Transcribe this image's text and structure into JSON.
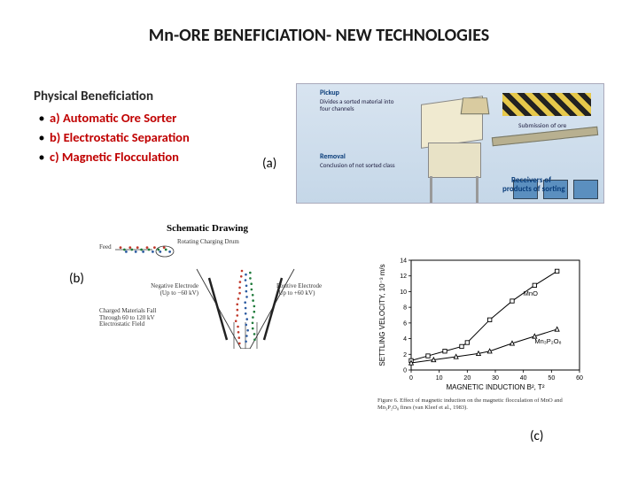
{
  "title": "Mn-ORE BENEFICIATION- NEW TECHNOLOGIES",
  "section_heading": "Physical Beneficiation",
  "bullets": [
    "a) Automatic Ore Sorter",
    "b) Electrostatic Separation",
    "c) Magnetic Flocculation"
  ],
  "bullet_color": "#c00000",
  "labels": {
    "a": "(a)",
    "b": "(b)",
    "c": "(c)"
  },
  "fig_a": {
    "annotations": {
      "pickup": "Pickup",
      "pickup_sub": "Divides a sorted material into four channels",
      "removal": "Removal",
      "removal_sub": "Conclusion of not sorted class",
      "submission": "Submission of ore",
      "receivers1": "Receivers of",
      "receivers2": "products of sorting"
    },
    "bg_gradient": [
      "#d8e4f0",
      "#c5d7e8"
    ],
    "machine_color": "#f0ead0",
    "bin_color": "#5b8fbf"
  },
  "fig_b": {
    "title": "Schematic Drawing",
    "labels": {
      "feed": "Feed",
      "drum": "Rotating Charging Drum",
      "neg_electrode": "Negative Electrode (Up to −60 kV)",
      "pos_electrode": "Positive Electrode (Up to +60 kV)",
      "fall_text": "Charged Materials Fall Through 60 to 120 kV Electrostatic Field"
    },
    "particle_colors": {
      "pos": "#c0392b",
      "neg": "#1e7a3a",
      "neutral": "#2b5aa0"
    },
    "electrode_color": "#222222"
  },
  "fig_c": {
    "type": "line",
    "title": "",
    "xlabel": "MAGNETIC INDUCTION B², T²",
    "ylabel": "SETTLING VELOCITY, 10⁻³ m/s",
    "xlim": [
      0,
      60
    ],
    "ylim": [
      0,
      14
    ],
    "xticks": [
      0,
      10,
      20,
      30,
      40,
      50,
      60
    ],
    "yticks": [
      0,
      2,
      4,
      6,
      8,
      10,
      12,
      14
    ],
    "series": [
      {
        "name": "MnO",
        "marker": "square",
        "points": [
          [
            0,
            1.2
          ],
          [
            6,
            1.8
          ],
          [
            12,
            2.4
          ],
          [
            18,
            3.0
          ],
          [
            20,
            3.5
          ],
          [
            28,
            6.4
          ],
          [
            36,
            8.8
          ],
          [
            44,
            10.8
          ],
          [
            52,
            12.6
          ]
        ],
        "break_index": 4,
        "color": "#000000"
      },
      {
        "name": "Mn₃P₂O₈",
        "marker": "triangle",
        "points": [
          [
            0,
            0.9
          ],
          [
            8,
            1.3
          ],
          [
            16,
            1.7
          ],
          [
            24,
            2.1
          ],
          [
            28,
            2.4
          ],
          [
            36,
            3.4
          ],
          [
            44,
            4.3
          ],
          [
            52,
            5.2
          ]
        ],
        "break_index": 4,
        "color": "#000000"
      }
    ],
    "axis_color": "#000000",
    "background_color": "#ffffff",
    "caption": "Figure 6. Effect of magnetic induction on the magnetic flocculation of MnO and Mn₃P₂O₈ fines (van Kleef et al., 1983)."
  }
}
